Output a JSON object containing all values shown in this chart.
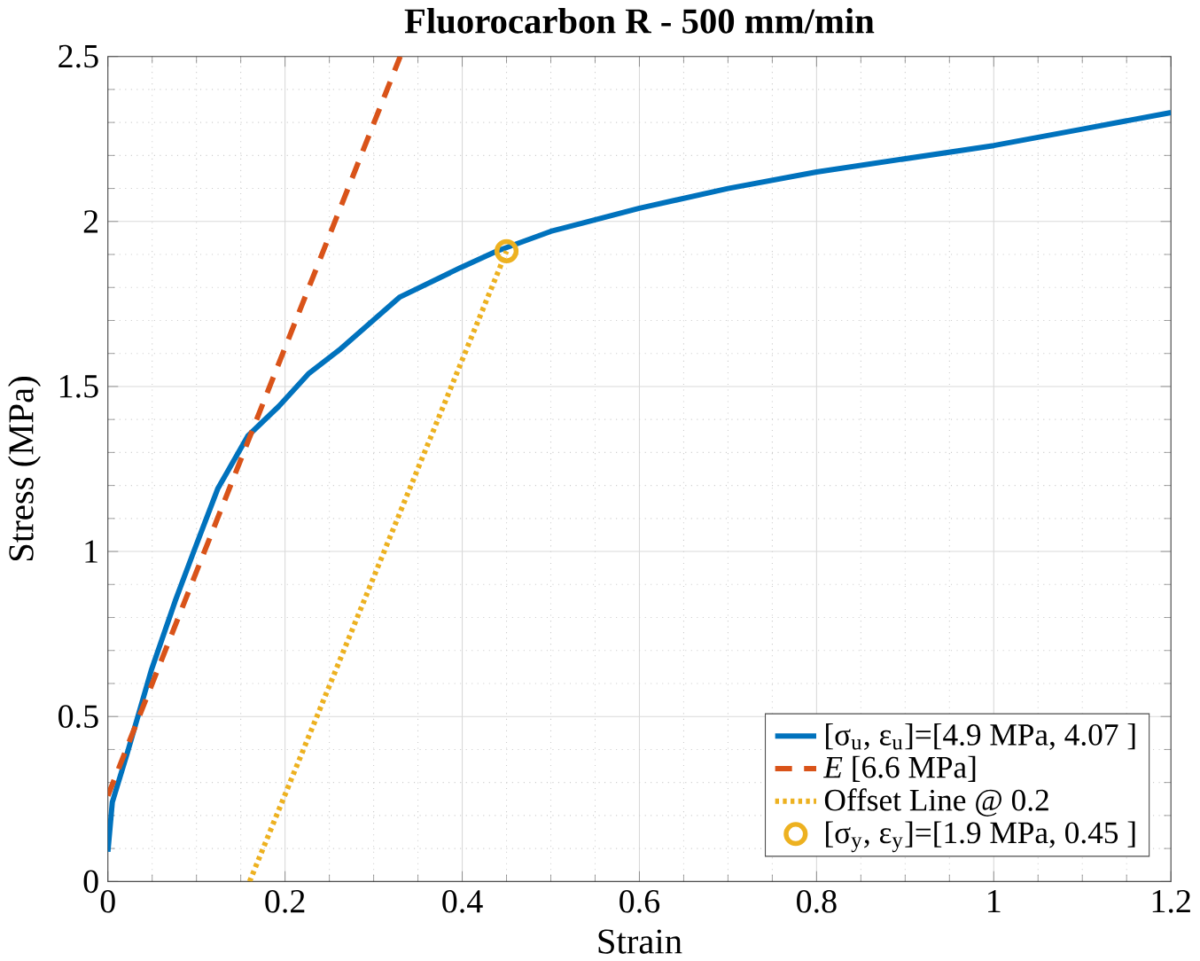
{
  "chart_data": {
    "type": "line",
    "title": "Fluorocarbon R - 500 mm/min",
    "xlabel": "Strain",
    "ylabel": "Stress (MPa)",
    "xlim": [
      0,
      1.2
    ],
    "ylim": [
      0,
      2.5
    ],
    "xticks": [
      0,
      0.2,
      0.4,
      0.6,
      0.8,
      1,
      1.2
    ],
    "yticks": [
      0,
      0.5,
      1,
      1.5,
      2,
      2.5
    ],
    "grid": true,
    "legend": "bottom right",
    "series": [
      {
        "name": "[σ$_{u}$, ε$_{u}$]=[4.9 MPa, 4.07 ]",
        "color": "#0072bd",
        "line_style": "solid",
        "x": [
          0,
          0.005,
          0.022,
          0.049,
          0.076,
          0.097,
          0.124,
          0.141,
          0.158,
          0.193,
          0.227,
          0.261,
          0.295,
          0.329,
          0.398,
          0.439,
          0.5,
          0.6,
          0.7,
          0.8,
          0.9,
          1.0,
          1.1,
          1.2
        ],
        "values": [
          0.09,
          0.24,
          0.39,
          0.64,
          0.85,
          1.0,
          1.19,
          1.27,
          1.35,
          1.44,
          1.54,
          1.61,
          1.69,
          1.77,
          1.86,
          1.91,
          1.97,
          2.04,
          2.1,
          2.15,
          2.19,
          2.23,
          2.28,
          2.33
        ]
      },
      {
        "name": "*E* [6.6 MPa]",
        "color": "#d95319",
        "line_style": "dashed",
        "x": [
          0,
          0.33
        ],
        "values": [
          0.26,
          2.5
        ]
      },
      {
        "name": "Offset Line @ 0.2",
        "color": "#edb120",
        "line_style": "dotted",
        "x": [
          0.16,
          0.45
        ],
        "values": [
          0,
          1.91
        ]
      },
      {
        "name": "[σ$_{y}$, ε$_{y}$]=[1.9 MPa, 0.45 ]",
        "type": "scatter",
        "marker": "circle",
        "color": "#edb120",
        "x": [
          0.45
        ],
        "values": [
          1.91
        ]
      }
    ]
  }
}
